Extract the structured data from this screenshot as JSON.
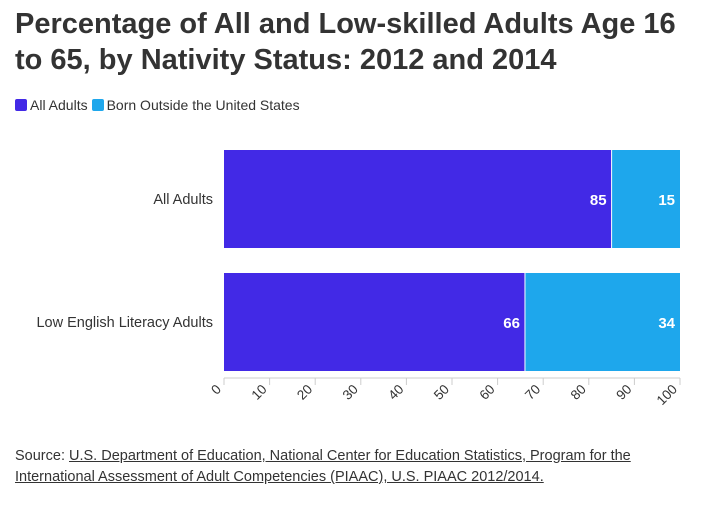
{
  "chart_data": {
    "type": "bar",
    "orientation": "horizontal",
    "stacked": true,
    "title": "Percentage of All and Low-skilled Adults Age 16 to 65, by Nativity Status: 2012 and 2014",
    "categories": [
      "All Adults",
      "Low English Literacy Adults"
    ],
    "series": [
      {
        "name": "All Adults",
        "values": [
          85,
          66
        ],
        "color": "#4229e6"
      },
      {
        "name": "Born Outside the United States",
        "values": [
          15,
          34
        ],
        "color": "#1ea7ec"
      }
    ],
    "xlim": [
      0,
      100
    ],
    "xticks": [
      0,
      10,
      20,
      30,
      40,
      50,
      60,
      70,
      80,
      90,
      100
    ],
    "grid": false,
    "legend_position": "top-left",
    "data_labels": true
  },
  "source": {
    "prefix": "Source: ",
    "link_text": "U.S. Department of Education, National Center for Education Statistics, Program for the International Assessment of Adult Competencies (PIAAC), U.S. PIAAC 2012/2014."
  }
}
